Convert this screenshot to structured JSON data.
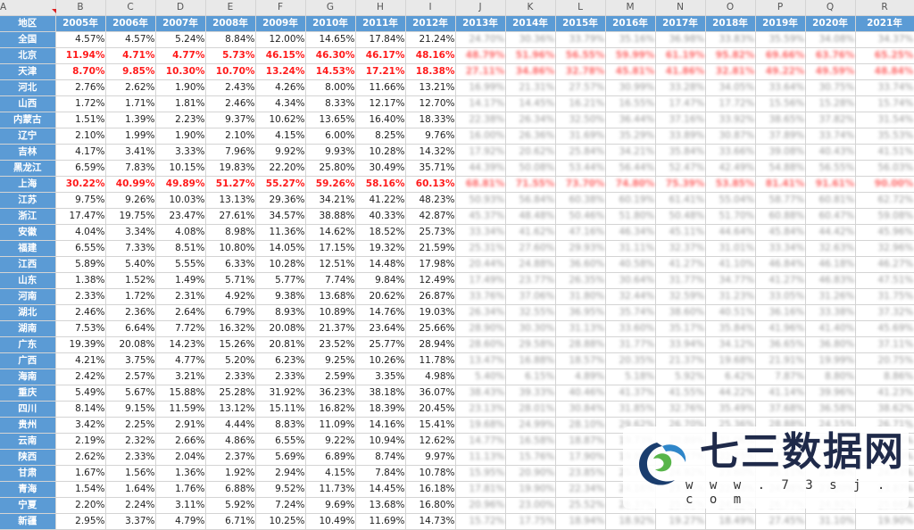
{
  "column_letters": [
    "A",
    "B",
    "C",
    "D",
    "E",
    "F",
    "G",
    "H",
    "I",
    "J",
    "K",
    "L",
    "M",
    "N",
    "O",
    "P",
    "Q",
    "R"
  ],
  "header": {
    "region_label": "地区",
    "years": [
      "2005年",
      "2006年",
      "2007年",
      "2008年",
      "2009年",
      "2010年",
      "2011年",
      "2012年",
      "2013年",
      "2014年",
      "2015年",
      "2016年",
      "2017年",
      "2018年",
      "2019年",
      "2020年",
      "2021年"
    ]
  },
  "rows": [
    {
      "region": "全国",
      "highlight": false,
      "values": [
        "4.57%",
        "4.57%",
        "5.24%",
        "8.84%",
        "12.00%",
        "14.65%",
        "17.84%",
        "21.24%",
        "24.70%",
        "30.36%",
        "33.79%",
        "35.16%",
        "36.98%",
        "33.83%",
        "35.59%",
        "34.08%",
        "34.37%"
      ]
    },
    {
      "region": "北京",
      "highlight": true,
      "values": [
        "11.94%",
        "4.71%",
        "4.77%",
        "5.73%",
        "46.15%",
        "46.30%",
        "46.17%",
        "48.16%",
        "48.79%",
        "51.96%",
        "56.55%",
        "59.99%",
        "61.19%",
        "95.82%",
        "69.66%",
        "63.76%",
        "65.25%"
      ]
    },
    {
      "region": "天津",
      "highlight": true,
      "values": [
        "8.70%",
        "9.85%",
        "10.30%",
        "10.70%",
        "13.24%",
        "14.53%",
        "17.21%",
        "18.38%",
        "27.11%",
        "34.86%",
        "32.78%",
        "45.81%",
        "41.86%",
        "32.81%",
        "49.22%",
        "49.59%",
        "48.84%"
      ]
    },
    {
      "region": "河北",
      "highlight": false,
      "values": [
        "2.76%",
        "2.62%",
        "1.90%",
        "2.43%",
        "4.26%",
        "8.00%",
        "11.66%",
        "13.21%",
        "16.99%",
        "21.31%",
        "27.57%",
        "30.99%",
        "33.28%",
        "34.05%",
        "33.64%",
        "30.75%",
        "33.74%"
      ]
    },
    {
      "region": "山西",
      "highlight": false,
      "values": [
        "1.72%",
        "1.71%",
        "1.81%",
        "2.46%",
        "4.34%",
        "8.33%",
        "12.17%",
        "12.70%",
        "14.17%",
        "14.45%",
        "16.21%",
        "16.55%",
        "17.47%",
        "17.72%",
        "15.56%",
        "15.28%",
        "15.74%"
      ]
    },
    {
      "region": "内蒙古",
      "highlight": false,
      "values": [
        "1.51%",
        "1.39%",
        "2.23%",
        "9.37%",
        "10.62%",
        "13.65%",
        "16.40%",
        "18.33%",
        "22.38%",
        "26.34%",
        "32.50%",
        "36.44%",
        "37.16%",
        "33.92%",
        "38.65%",
        "37.82%",
        "31.54%"
      ]
    },
    {
      "region": "辽宁",
      "highlight": false,
      "values": [
        "2.10%",
        "1.99%",
        "1.90%",
        "2.10%",
        "4.15%",
        "6.00%",
        "8.25%",
        "9.76%",
        "16.00%",
        "26.36%",
        "31.69%",
        "35.29%",
        "33.89%",
        "30.87%",
        "37.89%",
        "33.74%",
        "35.53%"
      ]
    },
    {
      "region": "吉林",
      "highlight": false,
      "values": [
        "4.17%",
        "3.41%",
        "3.33%",
        "7.96%",
        "9.92%",
        "9.93%",
        "10.28%",
        "14.32%",
        "17.92%",
        "20.62%",
        "25.84%",
        "34.21%",
        "35.84%",
        "33.66%",
        "39.08%",
        "40.43%",
        "41.51%"
      ]
    },
    {
      "region": "黑龙江",
      "highlight": false,
      "values": [
        "6.59%",
        "7.83%",
        "10.15%",
        "19.83%",
        "22.20%",
        "25.80%",
        "30.49%",
        "35.71%",
        "44.39%",
        "50.08%",
        "53.44%",
        "56.44%",
        "52.47%",
        "42.49%",
        "54.88%",
        "56.55%",
        "56.03%"
      ]
    },
    {
      "region": "上海",
      "highlight": true,
      "values": [
        "30.22%",
        "40.99%",
        "49.89%",
        "51.27%",
        "55.27%",
        "59.26%",
        "58.16%",
        "60.13%",
        "68.81%",
        "71.55%",
        "73.70%",
        "74.80%",
        "75.39%",
        "53.85%",
        "81.41%",
        "91.61%",
        "90.00%"
      ]
    },
    {
      "region": "江苏",
      "highlight": false,
      "values": [
        "9.75%",
        "9.26%",
        "10.03%",
        "13.13%",
        "29.36%",
        "34.21%",
        "41.22%",
        "48.23%",
        "50.93%",
        "56.84%",
        "60.38%",
        "60.19%",
        "61.41%",
        "55.04%",
        "58.77%",
        "60.81%",
        "62.72%"
      ]
    },
    {
      "region": "浙江",
      "highlight": false,
      "values": [
        "17.47%",
        "19.75%",
        "23.47%",
        "27.61%",
        "34.57%",
        "38.88%",
        "40.33%",
        "42.87%",
        "45.37%",
        "48.48%",
        "50.46%",
        "51.80%",
        "50.48%",
        "51.70%",
        "60.88%",
        "60.47%",
        "59.08%"
      ]
    },
    {
      "region": "安徽",
      "highlight": false,
      "values": [
        "4.04%",
        "3.34%",
        "4.08%",
        "8.98%",
        "11.36%",
        "14.62%",
        "18.52%",
        "25.73%",
        "33.34%",
        "41.62%",
        "47.16%",
        "46.34%",
        "45.11%",
        "44.64%",
        "45.84%",
        "44.42%",
        "45.96%"
      ]
    },
    {
      "region": "福建",
      "highlight": false,
      "values": [
        "6.55%",
        "7.33%",
        "8.51%",
        "10.80%",
        "14.05%",
        "17.15%",
        "19.32%",
        "21.59%",
        "25.31%",
        "27.60%",
        "29.93%",
        "31.11%",
        "32.37%",
        "31.01%",
        "33.34%",
        "32.63%",
        "32.96%"
      ]
    },
    {
      "region": "江西",
      "highlight": false,
      "values": [
        "5.89%",
        "5.40%",
        "5.55%",
        "6.33%",
        "10.28%",
        "12.51%",
        "14.48%",
        "17.98%",
        "20.44%",
        "24.88%",
        "36.60%",
        "40.58%",
        "41.27%",
        "41.10%",
        "46.84%",
        "46.18%",
        "46.27%"
      ]
    },
    {
      "region": "山东",
      "highlight": false,
      "values": [
        "1.38%",
        "1.52%",
        "1.49%",
        "5.71%",
        "5.77%",
        "7.74%",
        "9.84%",
        "12.49%",
        "17.49%",
        "23.77%",
        "26.35%",
        "30.64%",
        "31.77%",
        "34.77%",
        "41.27%",
        "46.83%",
        "47.51%"
      ]
    },
    {
      "region": "河南",
      "highlight": false,
      "values": [
        "2.33%",
        "1.72%",
        "2.31%",
        "4.92%",
        "9.38%",
        "13.68%",
        "20.62%",
        "26.87%",
        "33.76%",
        "37.06%",
        "31.80%",
        "32.44%",
        "32.59%",
        "31.23%",
        "33.05%",
        "31.26%",
        "31.75%"
      ]
    },
    {
      "region": "湖北",
      "highlight": false,
      "values": [
        "2.46%",
        "2.36%",
        "2.64%",
        "6.79%",
        "8.93%",
        "10.89%",
        "14.76%",
        "19.03%",
        "26.34%",
        "32.55%",
        "36.95%",
        "35.74%",
        "38.60%",
        "40.51%",
        "36.16%",
        "33.38%",
        "37.32%"
      ]
    },
    {
      "region": "湖南",
      "highlight": false,
      "values": [
        "7.53%",
        "6.64%",
        "7.72%",
        "16.32%",
        "20.08%",
        "21.37%",
        "23.64%",
        "25.66%",
        "28.90%",
        "30.30%",
        "31.13%",
        "33.60%",
        "35.17%",
        "35.84%",
        "41.96%",
        "41.40%",
        "45.69%"
      ]
    },
    {
      "region": "广东",
      "highlight": false,
      "values": [
        "19.39%",
        "20.08%",
        "14.23%",
        "15.26%",
        "20.81%",
        "23.52%",
        "25.77%",
        "28.94%",
        "28.60%",
        "29.58%",
        "28.88%",
        "31.77%",
        "33.94%",
        "34.12%",
        "36.65%",
        "36.80%",
        "37.11%"
      ]
    },
    {
      "region": "广西",
      "highlight": false,
      "values": [
        "4.21%",
        "3.75%",
        "4.77%",
        "5.20%",
        "6.23%",
        "9.25%",
        "10.26%",
        "11.78%",
        "13.47%",
        "16.88%",
        "18.57%",
        "20.35%",
        "21.37%",
        "19.68%",
        "21.91%",
        "19.99%",
        "20.75%"
      ]
    },
    {
      "region": "海南",
      "highlight": false,
      "values": [
        "2.42%",
        "2.57%",
        "3.21%",
        "2.33%",
        "2.33%",
        "2.59%",
        "3.35%",
        "4.98%",
        "5.40%",
        "6.15%",
        "4.89%",
        "5.18%",
        "5.92%",
        "6.42%",
        "7.87%",
        "8.80%",
        "8.86%"
      ]
    },
    {
      "region": "重庆",
      "highlight": false,
      "values": [
        "5.49%",
        "5.67%",
        "15.88%",
        "25.28%",
        "31.92%",
        "36.23%",
        "38.18%",
        "36.07%",
        "38.43%",
        "39.33%",
        "40.46%",
        "41.37%",
        "41.55%",
        "44.22%",
        "41.14%",
        "39.96%",
        "41.23%"
      ]
    },
    {
      "region": "四川",
      "highlight": false,
      "values": [
        "8.14%",
        "9.15%",
        "11.59%",
        "13.12%",
        "15.11%",
        "16.82%",
        "18.39%",
        "20.45%",
        "23.13%",
        "28.01%",
        "30.84%",
        "31.85%",
        "32.76%",
        "35.49%",
        "37.68%",
        "36.58%",
        "38.62%"
      ]
    },
    {
      "region": "贵州",
      "highlight": false,
      "values": [
        "3.42%",
        "2.25%",
        "2.91%",
        "4.44%",
        "8.83%",
        "11.09%",
        "14.16%",
        "15.41%",
        "19.68%",
        "24.99%",
        "28.10%",
        "29.62%",
        "26.70%",
        "25.36%",
        "28.88%",
        "24.15%",
        "26.71%"
      ]
    },
    {
      "region": "云南",
      "highlight": false,
      "values": [
        "2.19%",
        "2.32%",
        "2.66%",
        "4.86%",
        "6.55%",
        "9.22%",
        "10.94%",
        "12.62%",
        "14.77%",
        "16.58%",
        "18.87%",
        "19.73%",
        "20.89%",
        "21.06%",
        "21.96%",
        "20.60%",
        "21.26%"
      ]
    },
    {
      "region": "陕西",
      "highlight": false,
      "values": [
        "2.62%",
        "2.33%",
        "2.04%",
        "2.37%",
        "5.69%",
        "6.89%",
        "8.74%",
        "9.97%",
        "11.13%",
        "15.76%",
        "17.90%",
        "19.88%",
        "21.27%",
        "22.15%",
        "23.44%",
        "22.91%",
        "23.05%"
      ]
    },
    {
      "region": "甘肃",
      "highlight": false,
      "values": [
        "1.67%",
        "1.56%",
        "1.36%",
        "1.92%",
        "2.94%",
        "4.15%",
        "7.84%",
        "10.78%",
        "15.95%",
        "20.90%",
        "23.85%",
        "25.77%",
        "24.92%",
        "23.60%",
        "25.11%",
        "22.68%",
        "24.73%"
      ]
    },
    {
      "region": "青海",
      "highlight": false,
      "values": [
        "1.54%",
        "1.64%",
        "1.76%",
        "6.88%",
        "9.52%",
        "11.73%",
        "14.45%",
        "16.18%",
        "17.81%",
        "19.90%",
        "22.34%",
        "24.16%",
        "23.95%",
        "22.49%",
        "24.38%",
        "23.20%",
        "23.87%"
      ]
    },
    {
      "region": "宁夏",
      "highlight": false,
      "values": [
        "2.20%",
        "2.24%",
        "3.11%",
        "5.92%",
        "7.24%",
        "9.69%",
        "13.68%",
        "16.80%",
        "20.96%",
        "23.00%",
        "25.52%",
        "26.37%",
        "25.81%",
        "24.12%",
        "26.77%",
        "24.92%",
        "25.66%"
      ]
    },
    {
      "region": "新疆",
      "highlight": false,
      "values": [
        "2.95%",
        "3.37%",
        "4.79%",
        "6.71%",
        "10.25%",
        "10.49%",
        "11.69%",
        "14.73%",
        "15.72%",
        "17.75%",
        "18.94%",
        "18.92%",
        "19.27%",
        "18.49%",
        "27.45%",
        "31.10%",
        "19.90%"
      ]
    }
  ],
  "blurred_from_column_index": 8,
  "watermark": {
    "title": "七三数据网",
    "url": "w w w . 7 3 s j . c o m",
    "colors": {
      "logo_dark": "#1a3d6e",
      "logo_light": "#2f86c9",
      "logo_green": "#58b54a"
    }
  },
  "colors": {
    "header_bg": "#5b9bd5",
    "header_text": "#ffffff",
    "highlight_text": "#ff1a1a",
    "grid": "#d4d4d4"
  }
}
